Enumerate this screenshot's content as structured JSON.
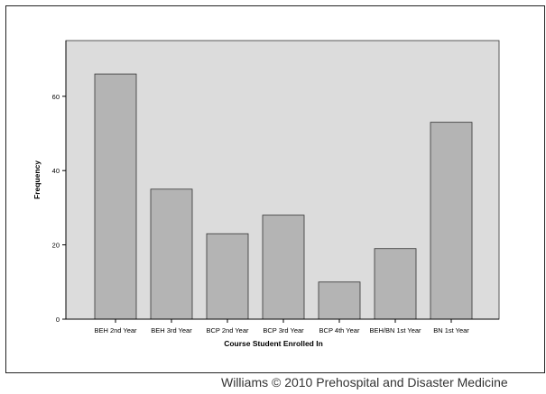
{
  "chart_data": {
    "type": "bar",
    "categories": [
      "BEH 2nd Year",
      "BEH 3rd Year",
      "BCP 2nd Year",
      "BCP 3rd Year",
      "BCP 4th Year",
      "BEH/BN 1st Year",
      "BN 1st Year"
    ],
    "values": [
      66,
      35,
      23,
      28,
      10,
      19,
      53
    ],
    "xlabel": "Course Student Enrolled In",
    "ylabel": "Frequency",
    "ylim": [
      0,
      75
    ],
    "yticks": [
      0,
      20,
      40,
      60
    ],
    "grid": false,
    "legend": "none",
    "colors": {
      "plot_bg": "#dcdcdc",
      "bar_fill": "#b4b4b4",
      "bar_stroke": "#333333"
    }
  },
  "credit": "Williams © 2010 Prehospital and Disaster Medicine"
}
